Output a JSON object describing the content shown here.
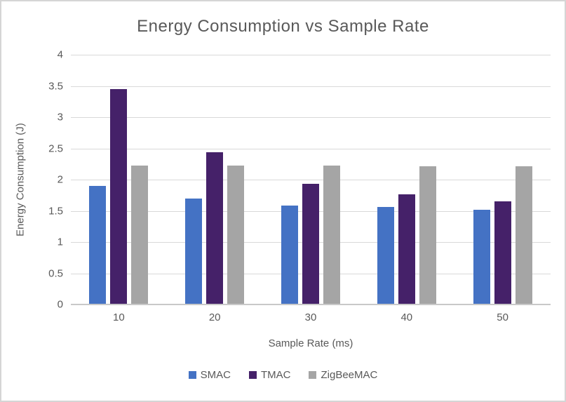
{
  "chart_data": {
    "type": "bar",
    "title": "Energy Consumption vs Sample Rate",
    "xlabel": "Sample Rate (ms)",
    "ylabel": "Energy Consumption (J)",
    "categories": [
      "10",
      "20",
      "30",
      "40",
      "50"
    ],
    "series": [
      {
        "name": "SMAC",
        "color": "#4472C4",
        "values": [
          1.9,
          1.7,
          1.59,
          1.56,
          1.52
        ]
      },
      {
        "name": "TMAC",
        "color": "#452169",
        "values": [
          3.45,
          2.44,
          1.93,
          1.76,
          1.65
        ]
      },
      {
        "name": "ZigBeeMAC",
        "color": "#A5A5A5",
        "values": [
          2.22,
          2.22,
          2.22,
          2.21,
          2.21
        ]
      }
    ],
    "ylim": [
      0,
      4
    ],
    "ytick_step": 0.5,
    "grid": true,
    "legend_position": "bottom"
  },
  "theme": {
    "text_color": "#595959",
    "gridline_color": "#D9D9D9",
    "axis_line_color": "#C9C9C9",
    "frame_border_color": "#D5D5D5",
    "background": "#FFFFFF"
  }
}
